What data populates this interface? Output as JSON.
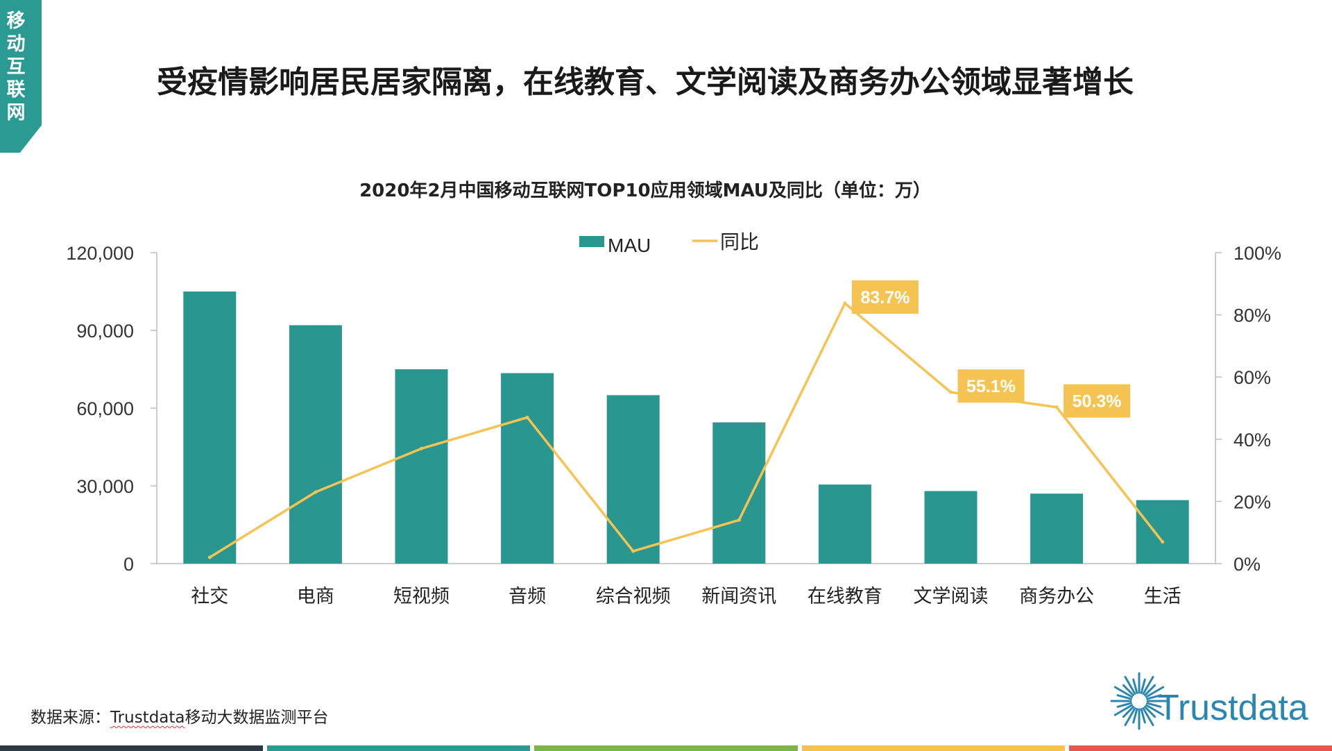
{
  "side_tab": "移动互联网",
  "headline": "受疫情影响居民居家隔离，在线教育、文学阅读及商务办公领域显著增长",
  "source": {
    "prefix": "数据来源：",
    "brand": "Trustdata",
    "suffix": "移动大数据监测平台"
  },
  "logo": {
    "text": "Trustdata",
    "icon": "starburst-logo-icon"
  },
  "footer_colors": [
    "#2b3a45",
    "#2a9a93",
    "#7cb548",
    "#f5c34d",
    "#e8574b"
  ],
  "colors": {
    "bar": "#2a9690",
    "line": "#f5c352",
    "label_bg": "#f5c352",
    "axis": "#bbbbbb"
  },
  "chart_data": {
    "type": "bar",
    "title": "2020年2月中国移动互联网TOP10应用领域MAU及同比（单位：万）",
    "categories": [
      "社交",
      "电商",
      "短视频",
      "音频",
      "综合视频",
      "新闻资讯",
      "在线教育",
      "文学阅读",
      "商务办公",
      "生活"
    ],
    "series": [
      {
        "name": "MAU",
        "type": "bar",
        "axis": "left",
        "values": [
          105000,
          92000,
          75000,
          73500,
          65000,
          54500,
          30500,
          28000,
          27000,
          24500
        ]
      },
      {
        "name": "同比",
        "type": "line",
        "axis": "right",
        "values": [
          2,
          23,
          37,
          47,
          4,
          14,
          83.7,
          55.1,
          50.3,
          7
        ]
      }
    ],
    "data_labels": [
      {
        "category": "在线教育",
        "text": "83.7%"
      },
      {
        "category": "文学阅读",
        "text": "55.1%"
      },
      {
        "category": "商务办公",
        "text": "50.3%"
      }
    ],
    "ylim_left": [
      0,
      120000
    ],
    "yticks_left": [
      "0",
      "30,000",
      "60,000",
      "90,000",
      "120,000"
    ],
    "ylim_right": [
      0,
      100
    ],
    "yticks_right": [
      "0%",
      "20%",
      "40%",
      "60%",
      "80%",
      "100%"
    ],
    "legend": {
      "position": "top-center",
      "items": [
        "MAU",
        "同比"
      ]
    },
    "grid": false
  }
}
